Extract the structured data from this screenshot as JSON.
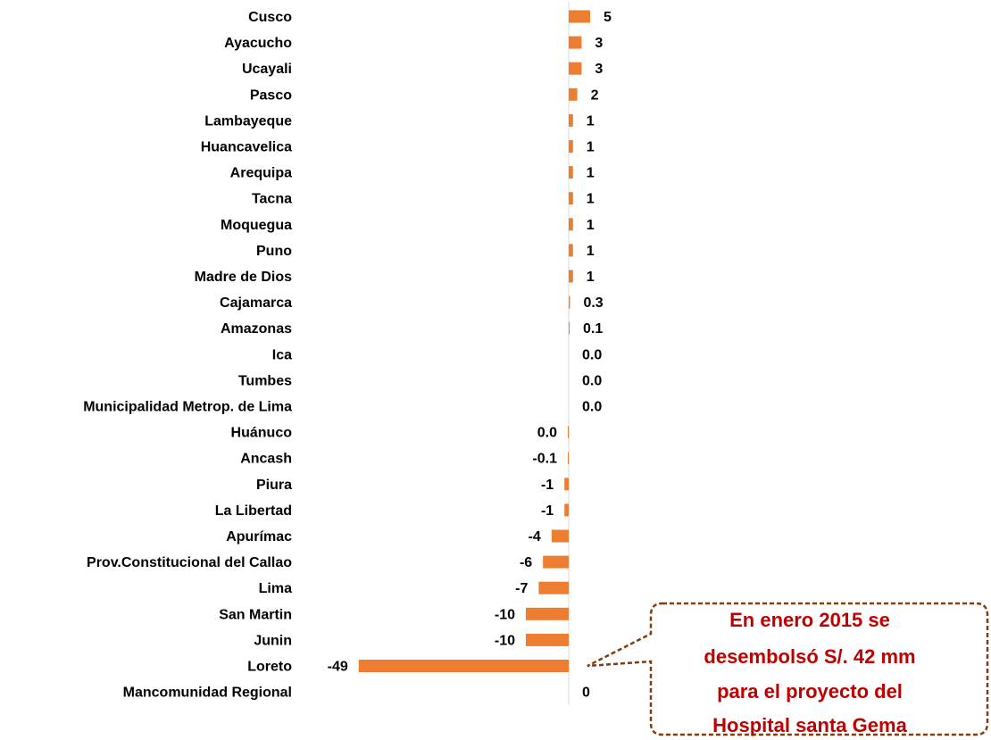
{
  "chart_data": {
    "type": "bar",
    "orientation": "horizontal",
    "categories": [
      "Cusco",
      "Ayacucho",
      "Ucayali",
      "Pasco",
      "Lambayeque",
      "Huancavelica",
      "Arequipa",
      "Tacna",
      "Moquegua",
      "Puno",
      "Madre de Dios",
      "Cajamarca",
      "Amazonas",
      "Ica",
      "Tumbes",
      "Municipalidad Metrop. de Lima",
      "Huánuco",
      "Ancash",
      "Piura",
      "La Libertad",
      "Apurímac",
      "Prov.Constitucional del Callao",
      "Lima",
      "San Martin",
      "Junin",
      "Loreto",
      "Mancomunidad Regional"
    ],
    "values": [
      5,
      3,
      3,
      2,
      1,
      1,
      1,
      1,
      1,
      1,
      1,
      0.3,
      0.1,
      0.0,
      0.0,
      0.0,
      -0.04,
      -0.1,
      -1,
      -1,
      -4,
      -6,
      -7,
      -10,
      -10,
      -49,
      0
    ],
    "value_labels": [
      "5",
      "3",
      "3",
      "2",
      "1",
      "1",
      "1",
      "1",
      "1",
      "1",
      "1",
      "0.3",
      "0.1",
      "0.0",
      "0.0",
      "0.0",
      "0.0",
      "-0.1",
      "-1",
      "-1",
      "-4",
      "-6",
      "-7",
      "-10",
      "-10",
      "-49",
      "0"
    ],
    "bar_color": "#ed7d31",
    "axis_color": "#d9d9d9",
    "title": "",
    "xlabel": "",
    "ylabel": "",
    "grid": false,
    "legend": "none"
  },
  "callout": {
    "lines": [
      "En enero 2015 se",
      "desembolsó S/. 42 mm",
      "para el proyecto del",
      "Hospital santa Gema"
    ],
    "text_color": "#c00000",
    "border_color": "#843c0c",
    "points_to": "Loreto"
  }
}
